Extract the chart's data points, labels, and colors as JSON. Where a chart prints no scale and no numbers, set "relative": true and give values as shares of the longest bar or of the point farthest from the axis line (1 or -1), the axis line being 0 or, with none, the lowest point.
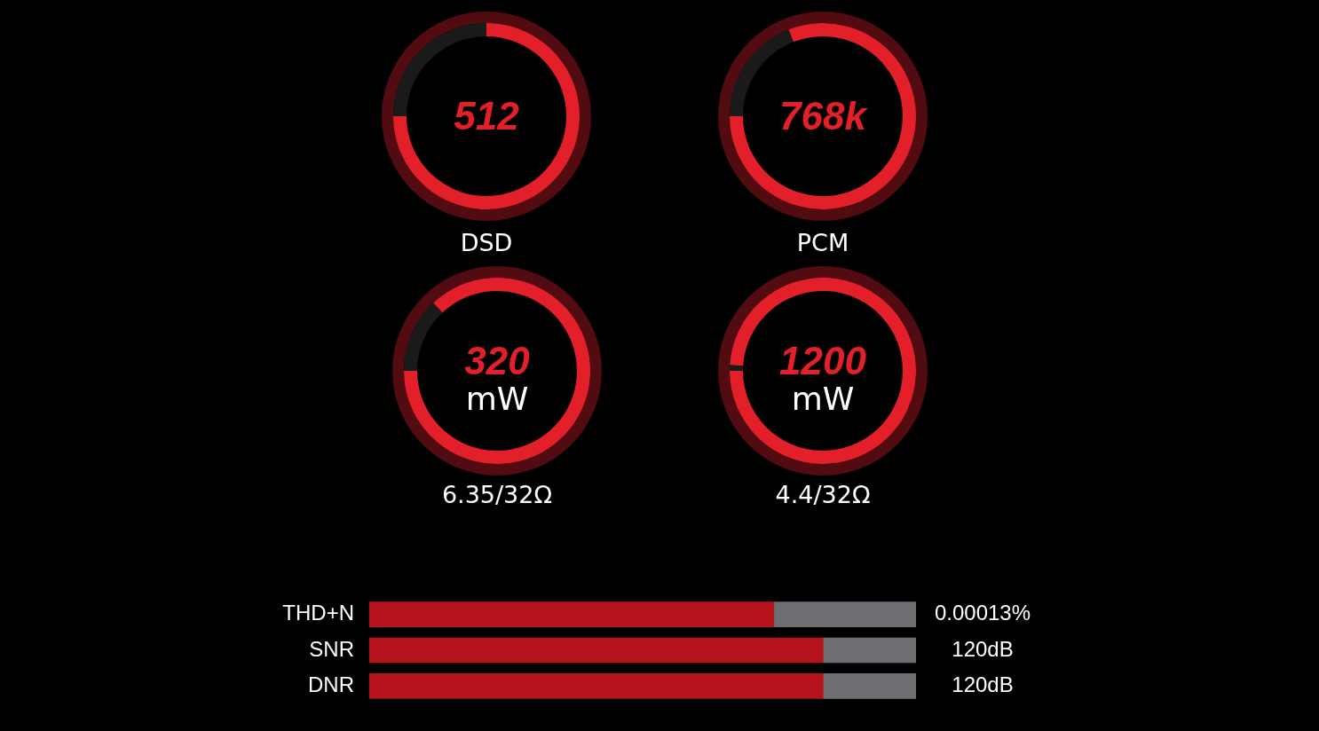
{
  "chart_data": [
    {
      "type": "donut",
      "title": "DSD",
      "annotations": [
        "512"
      ],
      "categories": [
        null,
        null
      ],
      "values": [
        75,
        25
      ],
      "colors": [
        "#e3202a",
        "#1a1a1a"
      ]
    },
    {
      "type": "donut",
      "title": "PCM",
      "annotations": [
        "768k"
      ],
      "categories": [
        null,
        null
      ],
      "values": [
        81,
        19
      ],
      "colors": [
        "#e3202a",
        "#1a1a1a"
      ]
    },
    {
      "type": "donut",
      "title": "6.35/32Ω",
      "annotations": [
        "320",
        "mW"
      ],
      "categories": [
        null,
        null
      ],
      "values": [
        87,
        13
      ],
      "colors": [
        "#e3202a",
        "#1a1a1a"
      ]
    },
    {
      "type": "donut",
      "title": "4.4/32Ω",
      "annotations": [
        "1200",
        "mW"
      ],
      "categories": [
        null,
        null
      ],
      "values": [
        99,
        1
      ],
      "colors": [
        "#e3202a",
        "#1a1a1a"
      ]
    },
    {
      "type": "bar",
      "orientation": "horizontal",
      "stacked": true,
      "relative": true,
      "categories": [
        "THD+N",
        "SNR",
        "DNR"
      ],
      "series": [
        {
          "color": "#b5121b",
          "values": [
            0.74,
            0.83,
            0.83
          ]
        },
        {
          "color": "#6d6e71",
          "values": [
            0.26,
            0.17,
            0.17
          ]
        }
      ],
      "annotations": [
        "0.00013%",
        "120dB",
        "120dB"
      ]
    }
  ]
}
